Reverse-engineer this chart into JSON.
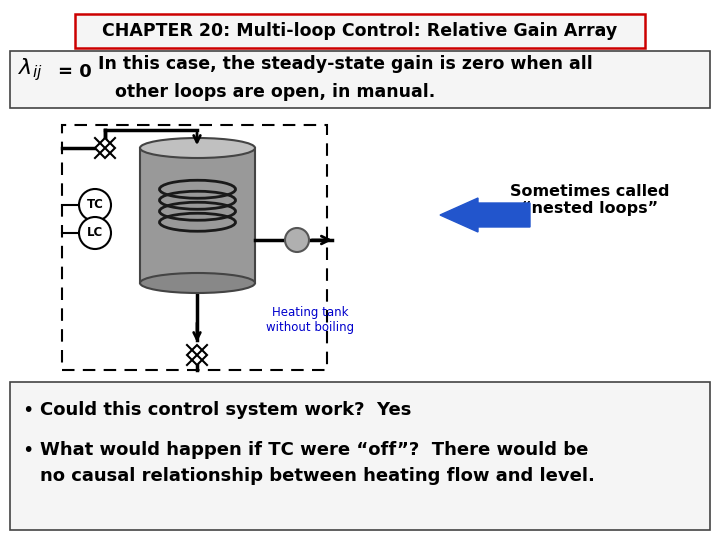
{
  "title": "CHAPTER 20: Multi-loop Control: Relative Gain Array",
  "nested_loops_text": "Sometimes called\n“nested loops”",
  "heating_tank_text": "Heating tank\nwithout boiling",
  "bullet1": "Could this control system work?  Yes",
  "bullet2_line1": "What would happen if TC were “off”?  There would be",
  "bullet2_line2": "no causal relationship between heating flow and level.",
  "bg_color": "#ffffff",
  "title_box_color": "#cc0000",
  "arrow_color": "#2255cc",
  "heating_text_color": "#0000cc",
  "fig_w": 7.2,
  "fig_h": 5.4,
  "dpi": 100
}
